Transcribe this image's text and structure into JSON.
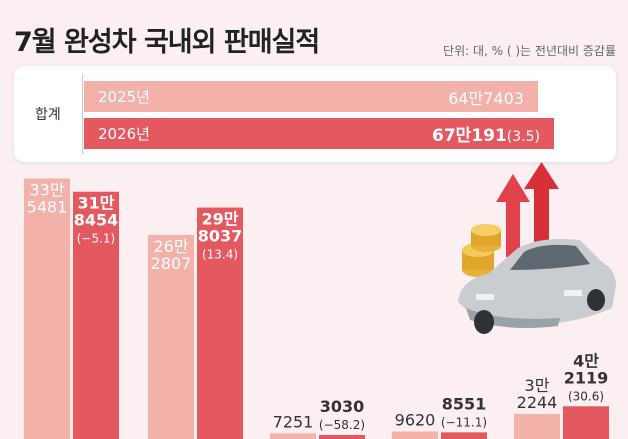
{
  "title": "7월 완성차 국내외 판매실적",
  "unit_note": "단위: 대, % ( )는 전년대비 증감률",
  "summary": {
    "label": "합계",
    "prev": {
      "year": "2025년",
      "value_text": "64만7403",
      "value": 647403
    },
    "cur": {
      "year": "2026년",
      "value_text": "67만191",
      "change_text": "(3.5)",
      "value": 670191,
      "change": 3.5
    }
  },
  "colors": {
    "prev": "#f2b1a9",
    "cur": "#e4595f",
    "background": "#fbeff2"
  },
  "chart_data": {
    "type": "bar",
    "series": [
      {
        "color": "#f2b1a9",
        "values": [
          335481,
          262807,
          7251,
          9620,
          32244
        ]
      },
      {
        "color": "#e4595f",
        "values": [
          318454,
          298037,
          3030,
          8551,
          42119
        ]
      }
    ],
    "labels_prev": [
      [
        "33만",
        "5481"
      ],
      [
        "26만",
        "2807"
      ],
      [
        "7251"
      ],
      [
        "9620"
      ],
      [
        "3만",
        "2244"
      ]
    ],
    "labels_cur": [
      [
        "31만",
        "8454",
        "(−5.1)"
      ],
      [
        "29만",
        "8037",
        "(13.4)"
      ],
      [
        "3030",
        "(−58.2)"
      ],
      [
        "8551",
        "(−11.1)"
      ],
      [
        "4만",
        "2119",
        "(30.6)"
      ]
    ],
    "changes": [
      -5.1,
      13.4,
      -58.2,
      -11.1,
      30.6
    ],
    "ylim": [
      0,
      340000
    ]
  }
}
